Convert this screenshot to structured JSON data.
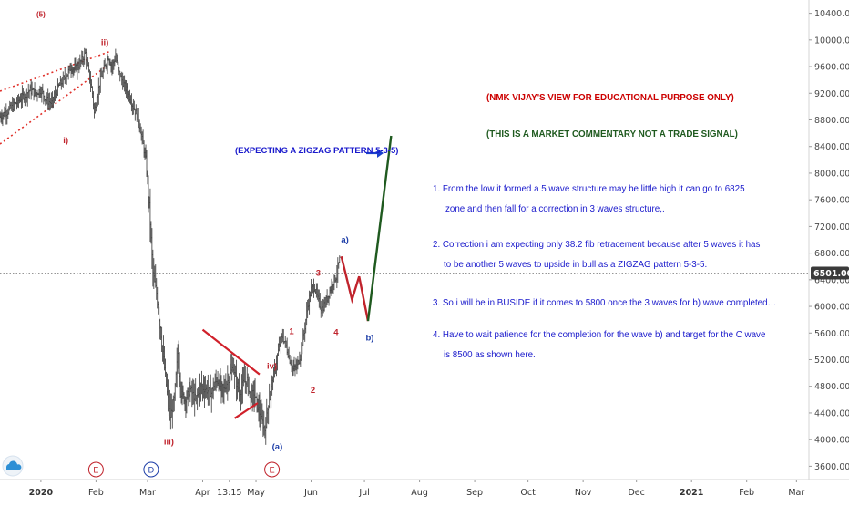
{
  "chart_data": {
    "type": "bar",
    "subtype": "ohlc",
    "price_axis": {
      "min": 3400,
      "max": 10600,
      "ticks": [
        "10400.00",
        "10000.00",
        "9600.00",
        "9200.00",
        "8800.00",
        "8400.00",
        "8000.00",
        "7600.00",
        "7200.00",
        "6800.00",
        "6400.00",
        "6000.00",
        "5600.00",
        "5200.00",
        "4800.00",
        "4400.00",
        "4000.00",
        "3600.00"
      ],
      "last_price": 6501,
      "last_price_label": "6501.00"
    },
    "time_axis": {
      "labels": [
        {
          "text": "2020",
          "bold": true,
          "day": 0
        },
        {
          "text": "Feb",
          "bold": false,
          "day": 31
        },
        {
          "text": "Mar",
          "bold": false,
          "day": 60
        },
        {
          "text": "Apr",
          "bold": false,
          "day": 91
        },
        {
          "text": "13:15",
          "bold": false,
          "day": 106
        },
        {
          "text": "May",
          "bold": false,
          "day": 121
        },
        {
          "text": "Jun",
          "bold": false,
          "day": 152
        },
        {
          "text": "Jul",
          "bold": false,
          "day": 182
        },
        {
          "text": "Aug",
          "bold": false,
          "day": 213
        },
        {
          "text": "Sep",
          "bold": false,
          "day": 244
        },
        {
          "text": "Oct",
          "bold": false,
          "day": 274
        },
        {
          "text": "Nov",
          "bold": false,
          "day": 305
        },
        {
          "text": "Dec",
          "bold": false,
          "day": 335
        },
        {
          "text": "2021",
          "bold": true,
          "day": 366
        },
        {
          "text": "Feb",
          "bold": false,
          "day": 397
        },
        {
          "text": "Mar",
          "bold": false,
          "day": 425
        }
      ],
      "day_min": -23,
      "day_max": 432
    },
    "price_path": [
      [
        -23,
        8850
      ],
      [
        -18,
        8950
      ],
      [
        -14,
        9050
      ],
      [
        -10,
        9150
      ],
      [
        -6,
        9250
      ],
      [
        -3,
        9200
      ],
      [
        0,
        9250
      ],
      [
        3,
        9100
      ],
      [
        6,
        9050
      ],
      [
        10,
        9300
      ],
      [
        14,
        9450
      ],
      [
        17,
        9600
      ],
      [
        19,
        9550
      ],
      [
        22,
        9650
      ],
      [
        25,
        9800
      ],
      [
        27,
        9500
      ],
      [
        29,
        9200
      ],
      [
        30,
        8900
      ],
      [
        33,
        9350
      ],
      [
        36,
        9600
      ],
      [
        38,
        9750
      ],
      [
        40,
        9600
      ],
      [
        42,
        9750
      ],
      [
        44,
        9500
      ],
      [
        47,
        9300
      ],
      [
        50,
        9150
      ],
      [
        52,
        9000
      ],
      [
        55,
        8800
      ],
      [
        57,
        8500
      ],
      [
        59,
        8200
      ],
      [
        61,
        7500
      ],
      [
        62,
        7000
      ],
      [
        63,
        6500
      ],
      [
        65,
        6200
      ],
      [
        67,
        5700
      ],
      [
        69,
        5200
      ],
      [
        71,
        4700
      ],
      [
        73,
        4350
      ],
      [
        75,
        4600
      ],
      [
        77,
        5300
      ],
      [
        79,
        4700
      ],
      [
        81,
        4600
      ],
      [
        84,
        4750
      ],
      [
        87,
        4600
      ],
      [
        90,
        4800
      ],
      [
        93,
        4750
      ],
      [
        96,
        4700
      ],
      [
        99,
        4900
      ],
      [
        101,
        4800
      ],
      [
        103,
        4750
      ],
      [
        106,
        4950
      ],
      [
        108,
        5100
      ],
      [
        110,
        4850
      ],
      [
        112,
        4700
      ],
      [
        114,
        4850
      ],
      [
        116,
        4900
      ],
      [
        118,
        4650
      ],
      [
        120,
        4700
      ],
      [
        122,
        4500
      ],
      [
        124,
        4300
      ],
      [
        126,
        4150
      ],
      [
        128,
        4550
      ],
      [
        130,
        4850
      ],
      [
        132,
        5100
      ],
      [
        134,
        5400
      ],
      [
        136,
        5550
      ],
      [
        138,
        5400
      ],
      [
        140,
        5200
      ],
      [
        142,
        5050
      ],
      [
        144,
        5100
      ],
      [
        146,
        5300
      ],
      [
        148,
        5600
      ],
      [
        150,
        6000
      ],
      [
        152,
        6250
      ],
      [
        154,
        6300
      ],
      [
        156,
        6100
      ],
      [
        158,
        5950
      ],
      [
        160,
        6050
      ],
      [
        162,
        6200
      ],
      [
        164,
        6350
      ],
      [
        166,
        6450
      ],
      [
        168,
        6700
      ]
    ],
    "wave_labels": [
      {
        "text": "(5)",
        "color": "#c0232c",
        "day": 0,
        "price": 10350
      },
      {
        "text": "ii)",
        "color": "#c0232c",
        "day": 36,
        "price": 9920
      },
      {
        "text": "i)",
        "color": "#c0232c",
        "day": 14,
        "price": 8450
      },
      {
        "text": "iii)",
        "color": "#c0232c",
        "day": 72,
        "price": 3930
      },
      {
        "text": "iv)",
        "color": "#c0232c",
        "day": 130,
        "price": 5060
      },
      {
        "text": "(a)",
        "color": "#1f3fa8",
        "day": 133,
        "price": 3850
      },
      {
        "text": "1",
        "color": "#c0232c",
        "day": 141,
        "price": 5580
      },
      {
        "text": "2",
        "color": "#c0232c",
        "day": 153,
        "price": 4700
      },
      {
        "text": "3",
        "color": "#c0232c",
        "day": 156,
        "price": 6460
      },
      {
        "text": "4",
        "color": "#c0232c",
        "day": 166,
        "price": 5570
      },
      {
        "text": "a)",
        "color": "#1f3fa8",
        "day": 171,
        "price": 6960
      },
      {
        "text": "b)",
        "color": "#1f3fa8",
        "day": 185,
        "price": 5490
      }
    ],
    "projection": [
      {
        "color": "#c0232c",
        "points": [
          [
            169,
            6750
          ],
          [
            175,
            6100
          ],
          [
            179,
            6450
          ],
          [
            184,
            5780
          ]
        ]
      },
      {
        "color": "#1f5a1f",
        "points": [
          [
            184,
            5780
          ],
          [
            197,
            8560
          ]
        ]
      }
    ],
    "triangle": [
      [
        [
          91,
          5650
        ],
        [
          123,
          4980
        ]
      ],
      [
        [
          109,
          4320
        ],
        [
          122,
          4550
        ]
      ]
    ],
    "events": [
      {
        "letter": "E",
        "color": "#c0232c",
        "day": 31
      },
      {
        "letter": "D",
        "color": "#1f3fa8",
        "day": 62
      },
      {
        "letter": "E",
        "color": "#c0232c",
        "day": 130
      }
    ]
  },
  "annotations": {
    "expecting": "(EXPECTING A ZIGZAG PATTERN 5-3-5)",
    "header1": "(NMK VIJAY'S VIEW FOR EDUCATIONAL PURPOSE ONLY)",
    "header2": "(THIS IS A MARKET COMMENTARY NOT A TRADE SIGNAL)",
    "points": [
      {
        "line1": "1. From the low it formed a 5 wave structure may be little high it can go to 6825",
        "line2": "zone and then fall for a correction in 3 waves structure,."
      },
      {
        "line1": "2. Correction i am expecting only 38.2 fib retracement because after 5 waves it has",
        "line2": "to be another 5 waves to upside in bull as a ZIGZAG pattern 5-3-5."
      },
      {
        "line1": "3. So i will be in BUSIDE if it comes to 5800 once the 3 waves for b) wave completed…",
        "line2": ""
      },
      {
        "line1": "4. Have to wait patience for the completion for the wave b) and target for the C wave",
        "line2": "is  8500 as shown here."
      }
    ]
  },
  "colors": {
    "price_bar": "#4a4a4a",
    "axis_text": "#4a4a4a",
    "wave_red": "#c0232c",
    "wave_blue": "#1f3fa8",
    "note_blue": "#1a1acc",
    "note_green": "#1f5a1f",
    "header_red": "#cc0000",
    "arrow_blue": "#1a3fcc",
    "logo": "#2d8fd5"
  },
  "icons": {
    "logo": "tradingview-cloud-icon"
  }
}
